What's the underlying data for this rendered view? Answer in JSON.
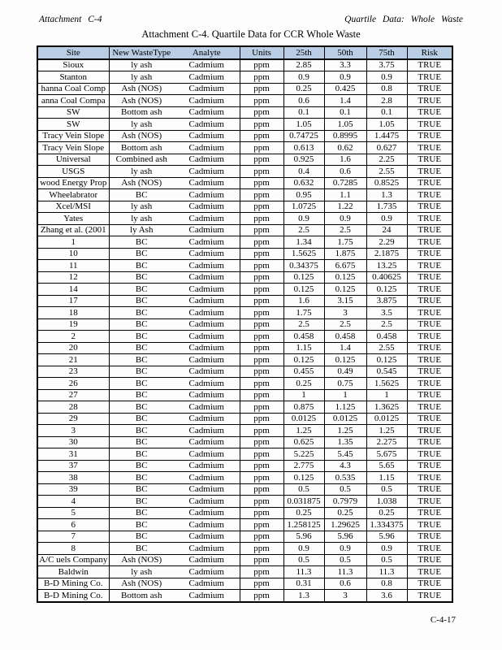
{
  "page": {
    "header_left": "Attachment C-4",
    "header_right": "Quartile Data: Whole Waste",
    "title": "Attachment C-4. Quartile Data for CCR Whole Waste",
    "footer": "C-4-17"
  },
  "table": {
    "header_bg": "#b9cde5",
    "border_color": "#000000",
    "columns": [
      "Site",
      "New WasteType",
      "Analyte",
      "Units",
      "25th",
      "50th",
      "75th",
      "Risk"
    ],
    "rows": [
      [
        "Sioux",
        "ly ash",
        "Cadmium",
        "ppm",
        "2.85",
        "3.3",
        "3.75",
        "TRUE"
      ],
      [
        "Stanton",
        "ly ash",
        "Cadmium",
        "ppm",
        "0.9",
        "0.9",
        "0.9",
        "TRUE"
      ],
      [
        "hanna Coal Comp",
        "Ash (NOS)",
        "Cadmium",
        "ppm",
        "0.25",
        "0.425",
        "0.8",
        "TRUE"
      ],
      [
        "anna Coal Compa",
        "Ash (NOS)",
        "Cadmium",
        "ppm",
        "0.6",
        "1.4",
        "2.8",
        "TRUE"
      ],
      [
        "SW",
        "Bottom ash",
        "Cadmium",
        "ppm",
        "0.1",
        "0.1",
        "0.1",
        "TRUE"
      ],
      [
        "SW",
        "ly ash",
        "Cadmium",
        "ppm",
        "1.05",
        "1.05",
        "1.05",
        "TRUE"
      ],
      [
        "Tracy Vein Slope",
        "Ash (NOS)",
        "Cadmium",
        "ppm",
        "0.74725",
        "0.8995",
        "1.4475",
        "TRUE"
      ],
      [
        "Tracy Vein Slope",
        "Bottom ash",
        "Cadmium",
        "ppm",
        "0.613",
        "0.62",
        "0.627",
        "TRUE"
      ],
      [
        "Universal",
        "Combined ash",
        "Cadmium",
        "ppm",
        "0.925",
        "1.6",
        "2.25",
        "TRUE"
      ],
      [
        "USGS",
        "ly ash",
        "Cadmium",
        "ppm",
        "0.4",
        "0.6",
        "2.55",
        "TRUE"
      ],
      [
        "wood Energy Prop",
        "Ash (NOS)",
        "Cadmium",
        "ppm",
        "0.632",
        "0.7285",
        "0.8525",
        "TRUE"
      ],
      [
        "Wheelabrator",
        "BC",
        "Cadmium",
        "ppm",
        "0.95",
        "1.1",
        "1.3",
        "TRUE"
      ],
      [
        "Xcel/MSI",
        "ly ash",
        "Cadmium",
        "ppm",
        "1.0725",
        "1.22",
        "1.735",
        "TRUE"
      ],
      [
        "Yates",
        "ly ash",
        "Cadmium",
        "ppm",
        "0.9",
        "0.9",
        "0.9",
        "TRUE"
      ],
      [
        "Zhang et al. (2001",
        "ly Ash",
        "Cadmium",
        "ppm",
        "2.5",
        "2.5",
        "24",
        "TRUE"
      ],
      [
        "1",
        "BC",
        "Cadmium",
        "ppm",
        "1.34",
        "1.75",
        "2.29",
        "TRUE"
      ],
      [
        "10",
        "BC",
        "Cadmium",
        "ppm",
        "1.5625",
        "1.875",
        "2.1875",
        "TRUE"
      ],
      [
        "11",
        "BC",
        "Cadmium",
        "ppm",
        "0.34375",
        "6.675",
        "13.25",
        "TRUE"
      ],
      [
        "12",
        "BC",
        "Cadmium",
        "ppm",
        "0.125",
        "0.125",
        "0.40625",
        "TRUE"
      ],
      [
        "14",
        "BC",
        "Cadmium",
        "ppm",
        "0.125",
        "0.125",
        "0.125",
        "TRUE"
      ],
      [
        "17",
        "BC",
        "Cadmium",
        "ppm",
        "1.6",
        "3.15",
        "3.875",
        "TRUE"
      ],
      [
        "18",
        "BC",
        "Cadmium",
        "ppm",
        "1.75",
        "3",
        "3.5",
        "TRUE"
      ],
      [
        "19",
        "BC",
        "Cadmium",
        "ppm",
        "2.5",
        "2.5",
        "2.5",
        "TRUE"
      ],
      [
        "2",
        "BC",
        "Cadmium",
        "ppm",
        "0.458",
        "0.458",
        "0.458",
        "TRUE"
      ],
      [
        "20",
        "BC",
        "Cadmium",
        "ppm",
        "1.15",
        "1.4",
        "2.55",
        "TRUE"
      ],
      [
        "21",
        "BC",
        "Cadmium",
        "ppm",
        "0.125",
        "0.125",
        "0.125",
        "TRUE"
      ],
      [
        "23",
        "BC",
        "Cadmium",
        "ppm",
        "0.455",
        "0.49",
        "0.545",
        "TRUE"
      ],
      [
        "26",
        "BC",
        "Cadmium",
        "ppm",
        "0.25",
        "0.75",
        "1.5625",
        "TRUE"
      ],
      [
        "27",
        "BC",
        "Cadmium",
        "ppm",
        "1",
        "1",
        "1",
        "TRUE"
      ],
      [
        "28",
        "BC",
        "Cadmium",
        "ppm",
        "0.875",
        "1.125",
        "1.3625",
        "TRUE"
      ],
      [
        "29",
        "BC",
        "Cadmium",
        "ppm",
        "0.0125",
        "0.0125",
        "0.0125",
        "TRUE"
      ],
      [
        "3",
        "BC",
        "Cadmium",
        "ppm",
        "1.25",
        "1.25",
        "1.25",
        "TRUE"
      ],
      [
        "30",
        "BC",
        "Cadmium",
        "ppm",
        "0.625",
        "1.35",
        "2.275",
        "TRUE"
      ],
      [
        "31",
        "BC",
        "Cadmium",
        "ppm",
        "5.225",
        "5.45",
        "5.675",
        "TRUE"
      ],
      [
        "37",
        "BC",
        "Cadmium",
        "ppm",
        "2.775",
        "4.3",
        "5.65",
        "TRUE"
      ],
      [
        "38",
        "BC",
        "Cadmium",
        "ppm",
        "0.125",
        "0.535",
        "1.15",
        "TRUE"
      ],
      [
        "39",
        "BC",
        "Cadmium",
        "ppm",
        "0.5",
        "0.5",
        "0.5",
        "TRUE"
      ],
      [
        "4",
        "BC",
        "Cadmium",
        "ppm",
        "0.031875",
        "0.7979",
        "1.038",
        "TRUE"
      ],
      [
        "5",
        "BC",
        "Cadmium",
        "ppm",
        "0.25",
        "0.25",
        "0.25",
        "TRUE"
      ],
      [
        "6",
        "BC",
        "Cadmium",
        "ppm",
        "1.258125",
        "1.29625",
        "1.334375",
        "TRUE"
      ],
      [
        "7",
        "BC",
        "Cadmium",
        "ppm",
        "5.96",
        "5.96",
        "5.96",
        "TRUE"
      ],
      [
        "8",
        "BC",
        "Cadmium",
        "ppm",
        "0.9",
        "0.9",
        "0.9",
        "TRUE"
      ],
      [
        "A/C uels Company",
        "Ash (NOS)",
        "Cadmium",
        "ppm",
        "0.5",
        "0.5",
        "0.5",
        "TRUE"
      ],
      [
        "Baldwin",
        "ly ash",
        "Cadmium",
        "ppm",
        "11.3",
        "11.3",
        "11.3",
        "TRUE"
      ],
      [
        "B-D Mining Co.",
        "Ash (NOS)",
        "Cadmium",
        "ppm",
        "0.31",
        "0.6",
        "0.8",
        "TRUE"
      ],
      [
        "B-D Mining Co.",
        "Bottom ash",
        "Cadmium",
        "ppm",
        "1.3",
        "3",
        "3.6",
        "TRUE"
      ]
    ]
  }
}
